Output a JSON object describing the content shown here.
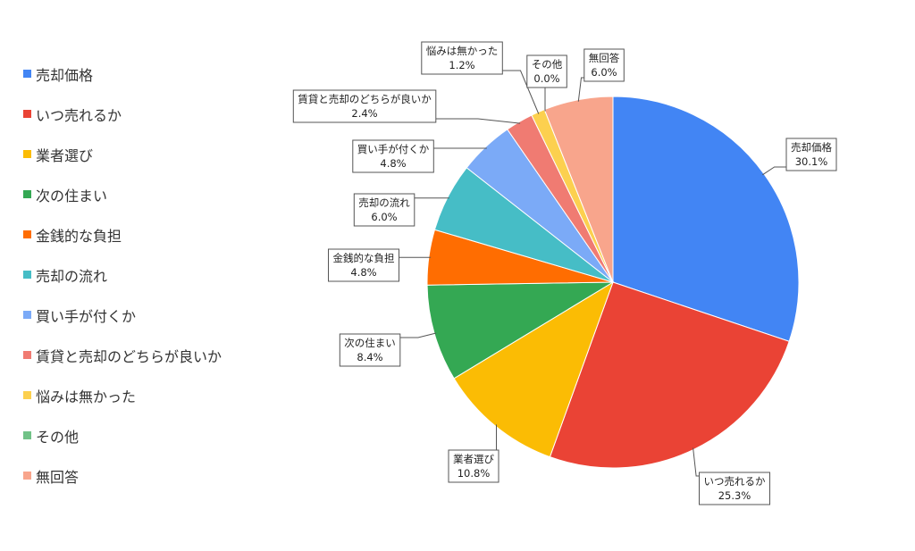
{
  "chart_data": {
    "type": "pie",
    "slices": [
      {
        "label": "売却価格",
        "value": 30.1,
        "value_label": "30.1%",
        "color": "#4285F4"
      },
      {
        "label": "いつ売れるか",
        "value": 25.3,
        "value_label": "25.3%",
        "color": "#EA4335"
      },
      {
        "label": "業者選び",
        "value": 10.8,
        "value_label": "10.8%",
        "color": "#FBBC04"
      },
      {
        "label": "次の住まい",
        "value": 8.4,
        "value_label": "8.4%",
        "color": "#34A853"
      },
      {
        "label": "金銭的な負担",
        "value": 4.8,
        "value_label": "4.8%",
        "color": "#FF6D01"
      },
      {
        "label": "売却の流れ",
        "value": 6.0,
        "value_label": "6.0%",
        "color": "#46BDC6"
      },
      {
        "label": "買い手が付くか",
        "value": 4.8,
        "value_label": "4.8%",
        "color": "#7BAAF7"
      },
      {
        "label": "賃貸と売却のどちらが良いか",
        "value": 2.4,
        "value_label": "2.4%",
        "color": "#F07B72"
      },
      {
        "label": "悩みは無かった",
        "value": 1.2,
        "value_label": "1.2%",
        "color": "#FCD04F"
      },
      {
        "label": "その他",
        "value": 0.0,
        "value_label": "0.0%",
        "color": "#71C287"
      },
      {
        "label": "無回答",
        "value": 6.0,
        "value_label": "6.0%",
        "color": "#F8A58C"
      }
    ],
    "legend_position": "left"
  }
}
